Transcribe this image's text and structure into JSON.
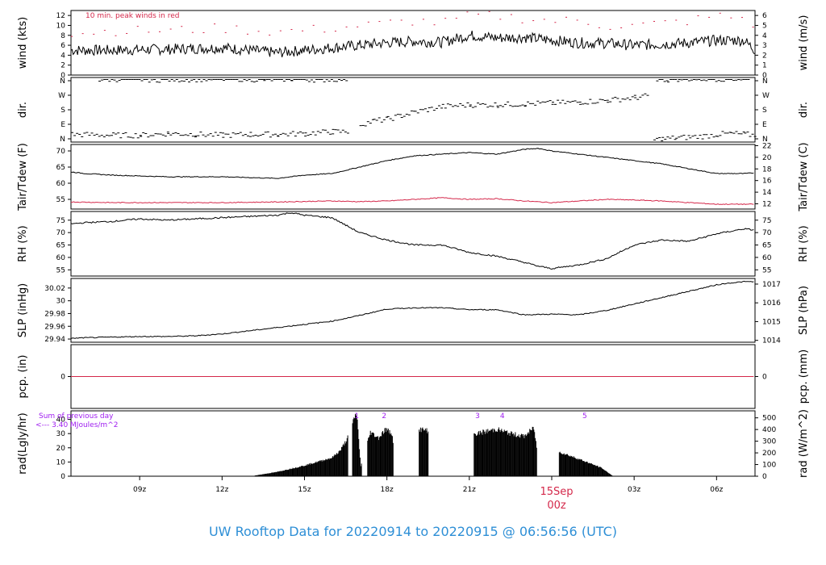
{
  "title": "UW Rooftop Data for 20220914  to  20220915 @ 06:56:56  (UTC)",
  "colors": {
    "title": "#2e8fd6",
    "peak": "#d4284a",
    "annotation": "#a020f0",
    "date_marker": "#d4284a"
  },
  "x_ticks": [
    "09z",
    "12z",
    "15z",
    "18z",
    "21z",
    "00z",
    "03z",
    "06z"
  ],
  "date_marker": {
    "day": "15Sep",
    "hour": "00z"
  },
  "chart_data": [
    {
      "type": "line",
      "id": "wind",
      "ylabel": "wind (kts)",
      "ylabel_right": "wind (m/s)",
      "yticks": [
        0,
        2,
        4,
        6,
        8,
        10,
        12
      ],
      "yticks_right": [
        0,
        1,
        2,
        3,
        4,
        5,
        6
      ],
      "ylim": [
        0,
        13
      ],
      "annotation": "10 min. peak winds in red",
      "series": [
        {
          "hours": [
            6.5,
            8,
            10,
            12,
            14,
            16,
            18,
            19,
            20,
            21,
            22,
            23,
            24,
            25,
            26,
            27,
            28,
            29,
            30,
            31,
            31.4
          ],
          "values": [
            5.0,
            5.0,
            5.2,
            5.5,
            4.5,
            5.5,
            6.5,
            6.8,
            6.6,
            8.0,
            7.5,
            7.6,
            7.0,
            6.5,
            6.4,
            6.0,
            6.2,
            6.5,
            7.0,
            7.0,
            5.0
          ]
        },
        {
          "hours": [
            6.5,
            8,
            10,
            12,
            14,
            16,
            18,
            19,
            20,
            21,
            22,
            23,
            24,
            25,
            26,
            27,
            28,
            29,
            30,
            31,
            31.4
          ],
          "values": [
            8.5,
            9.0,
            9.0,
            9.5,
            8.8,
            9.5,
            10.5,
            11.0,
            10.5,
            12.0,
            12.0,
            11.5,
            11.0,
            11.0,
            10.0,
            10.0,
            10.5,
            11.0,
            12.0,
            11.5,
            10.0
          ]
        }
      ]
    },
    {
      "type": "scatter",
      "id": "dir",
      "ylabel": "dir.",
      "ylabel_right": "dir.",
      "yticks": [
        "N",
        "E",
        "S",
        "W",
        "N"
      ],
      "yticks_right": [
        "N",
        "E",
        "S",
        "W",
        "N"
      ],
      "ylim": [
        0,
        360
      ],
      "series": [
        {
          "hours": [
            6.5,
            8,
            9,
            10,
            11,
            12,
            13,
            14,
            15,
            16,
            16.6
          ],
          "values": [
            45,
            40,
            40,
            50,
            45,
            40,
            45,
            45,
            50,
            60,
            60
          ]
        },
        {
          "hours": [
            7.5,
            8.5,
            9.5,
            12.5,
            13.5,
            14.5,
            15.5,
            16.5
          ],
          "values": [
            350,
            355,
            350,
            355,
            350,
            355,
            350,
            355
          ]
        },
        {
          "hours": [
            17,
            17.5,
            18,
            18.5,
            19,
            19.5,
            20,
            21,
            22,
            23,
            24,
            25,
            26,
            27,
            27.5
          ],
          "values": [
            100,
            120,
            130,
            150,
            170,
            185,
            200,
            210,
            210,
            215,
            220,
            225,
            235,
            250,
            260
          ]
        },
        {
          "hours": [
            27.7,
            28,
            28.5,
            29,
            29.5,
            30,
            30.5,
            31,
            31.4
          ],
          "values": [
            15,
            20,
            25,
            30,
            35,
            45,
            50,
            45,
            40
          ]
        },
        {
          "hours": [
            27.8,
            28.2,
            28.6,
            31.2
          ],
          "values": [
            355,
            350,
            355,
            355
          ]
        }
      ]
    },
    {
      "type": "line",
      "id": "temp",
      "ylabel": "Tair/Tdew (F)",
      "ylabel_right": "Tair/Tdew (C)",
      "yticks": [
        55,
        60,
        65,
        70
      ],
      "yticks_right": [
        12,
        14,
        16,
        18,
        20,
        22
      ],
      "ylim": [
        52,
        72
      ],
      "series": [
        {
          "hours": [
            6.5,
            7,
            8,
            10,
            12,
            14,
            15,
            16,
            17,
            18,
            19,
            20,
            21,
            22,
            23,
            23.5,
            24,
            25,
            26,
            27,
            28,
            29,
            30,
            31,
            31.4
          ],
          "values": [
            63.5,
            63.0,
            62.5,
            62.0,
            62.0,
            61.5,
            62.5,
            63.0,
            65.0,
            67.0,
            68.5,
            69.0,
            69.5,
            69.0,
            70.5,
            70.8,
            70.0,
            69.0,
            68.0,
            67.0,
            66.0,
            64.5,
            63.0,
            63.0,
            63.2
          ]
        },
        {
          "hours": [
            6.5,
            8,
            10,
            12,
            14,
            16,
            17,
            18,
            19,
            20,
            21,
            22,
            23,
            24,
            25,
            26,
            27,
            28,
            29,
            30,
            31,
            31.4
          ],
          "values": [
            54.2,
            54.0,
            54.0,
            54.0,
            54.2,
            54.5,
            54.3,
            54.5,
            55.0,
            55.5,
            55.0,
            55.2,
            54.5,
            54.0,
            54.5,
            55.0,
            54.8,
            54.5,
            54.0,
            53.5,
            53.5,
            53.5
          ]
        }
      ]
    },
    {
      "type": "line",
      "id": "rh",
      "ylabel": "RH (%)",
      "ylabel_right": "RH (%)",
      "yticks": [
        55,
        60,
        65,
        70,
        75
      ],
      "yticks_right": [
        55,
        60,
        65,
        70,
        75
      ],
      "ylim": [
        52.5,
        78.5
      ],
      "series": [
        {
          "hours": [
            6.5,
            7,
            8,
            9,
            10,
            11,
            12,
            13,
            14,
            14.5,
            15,
            16,
            16.5,
            17,
            18,
            19,
            20,
            21,
            22,
            23,
            23.5,
            24,
            25,
            26,
            27,
            28,
            29,
            30,
            31,
            31.4
          ],
          "values": [
            73.5,
            74.0,
            74.5,
            75.5,
            75.0,
            75.5,
            76.0,
            76.5,
            77.0,
            78.0,
            77.0,
            76.0,
            73.0,
            70.0,
            67.0,
            65.0,
            65.0,
            62.0,
            60.5,
            58.0,
            56.5,
            55.5,
            57.0,
            59.5,
            65.0,
            67.0,
            66.5,
            69.5,
            71.5,
            71.0
          ]
        }
      ]
    },
    {
      "type": "line",
      "id": "slp",
      "ylabel": "SLP (inHg)",
      "ylabel_right": "SLP (hPa)",
      "yticks": [
        29.94,
        29.96,
        29.98,
        30.0,
        30.02
      ],
      "yticks_right": [
        1014,
        1015,
        1016,
        1017
      ],
      "ylim": [
        29.935,
        30.035
      ],
      "series": [
        {
          "hours": [
            6.5,
            7,
            8,
            9,
            10,
            11,
            12,
            13,
            14,
            15,
            16,
            17,
            18,
            19,
            20,
            21,
            22,
            23,
            24,
            25,
            26,
            27,
            28,
            29,
            30,
            30.5,
            31,
            31.4
          ],
          "values": [
            29.941,
            29.942,
            29.943,
            29.944,
            29.944,
            29.945,
            29.948,
            29.953,
            29.958,
            29.963,
            29.968,
            29.977,
            29.987,
            29.989,
            29.989,
            29.986,
            29.986,
            29.978,
            29.979,
            29.978,
            29.985,
            29.995,
            30.005,
            30.015,
            30.025,
            30.028,
            30.03,
            30.03
          ]
        }
      ]
    },
    {
      "type": "line",
      "id": "pcp",
      "ylabel": "pcp. (in)",
      "ylabel_right": "pcp. (mm)",
      "yticks": [
        0
      ],
      "yticks_right": [
        0
      ],
      "ylim": [
        -1,
        1
      ],
      "series": [
        {
          "hours": [
            6.5,
            31.4
          ],
          "values": [
            0,
            0
          ]
        }
      ]
    },
    {
      "type": "area",
      "id": "rad",
      "ylabel": "rad(Lgly/hr)",
      "ylabel_right": "rad (W/m^2)",
      "yticks": [
        0,
        10,
        20,
        30,
        40
      ],
      "yticks_right": [
        0,
        100,
        200,
        300,
        400,
        500
      ],
      "ylim": [
        0,
        46
      ],
      "annotation": "Sum of previous day\n<--- 3.40 MJoules/m^2",
      "markers": [
        "1",
        "2",
        "3",
        "4",
        "5"
      ],
      "marker_hours": [
        16.9,
        17.9,
        21.3,
        22.2,
        25.2
      ],
      "series": [
        {
          "hours": [
            13.2,
            14,
            15,
            16,
            16.3,
            16.55,
            16.9,
            17.05,
            17.4,
            17.7,
            17.95,
            18.2,
            18.3,
            19.2,
            19.5,
            21.2,
            21.5,
            22,
            22.5,
            23,
            23.35,
            23.6,
            24.3,
            25.0,
            25.8,
            26.2
          ],
          "values": [
            0.5,
            3.0,
            7.5,
            13.0,
            18.0,
            26.0,
            45.0,
            7.0,
            31.0,
            27.0,
            33.0,
            30.0,
            0.5,
            33.0,
            32.0,
            29.5,
            31.0,
            33.0,
            30.0,
            28.0,
            34.0,
            0.5,
            17.0,
            12.0,
            6.0,
            0.5
          ]
        }
      ]
    }
  ]
}
